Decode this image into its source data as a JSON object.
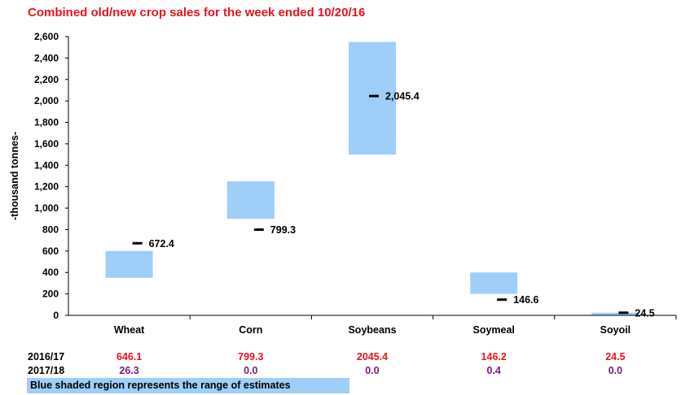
{
  "title": "Combined old/new crop sales for the week ended 10/20/16",
  "footnote": "Blue shaded region represents the range of estimates",
  "colors": {
    "title": "#e8131b",
    "range": "#9fcff8",
    "row1": "#e8131b",
    "row2": "#7a1a78"
  },
  "chart_data": {
    "type": "bar",
    "title": "Combined old/new crop sales for the week ended 10/20/16",
    "ylabel": "-thousand tonnes-",
    "xlabel": "",
    "ylim": [
      0,
      2600
    ],
    "ystep": 200,
    "y_tick_labels": [
      "0",
      "200",
      "400",
      "600",
      "800",
      "1,000",
      "1,200",
      "1,400",
      "1,600",
      "1,800",
      "2,000",
      "2,200",
      "2,400",
      "2,600"
    ],
    "categories": [
      "Wheat",
      "Corn",
      "Soybeans",
      "Soymeal",
      "Soyoil"
    ],
    "ranges": [
      {
        "low": 350,
        "high": 600
      },
      {
        "low": 900,
        "high": 1250
      },
      {
        "low": 1500,
        "high": 2550
      },
      {
        "low": 200,
        "high": 400
      },
      {
        "low": 0,
        "high": 25
      }
    ],
    "markers": [
      {
        "value": 672.4,
        "label": "672.4"
      },
      {
        "value": 799.3,
        "label": "799.3"
      },
      {
        "value": 2045.4,
        "label": "2,045.4"
      },
      {
        "value": 146.6,
        "label": "146.6"
      },
      {
        "value": 24.5,
        "label": "24.5"
      }
    ],
    "grid": false,
    "legend": "none"
  },
  "table": {
    "rows": [
      {
        "label": "2016/17",
        "values": [
          "646.1",
          "799.3",
          "2045.4",
          "146.2",
          "24.5"
        ]
      },
      {
        "label": "2017/18",
        "values": [
          "26.3",
          "0.0",
          "0.0",
          "0.4",
          "0.0"
        ]
      }
    ]
  }
}
